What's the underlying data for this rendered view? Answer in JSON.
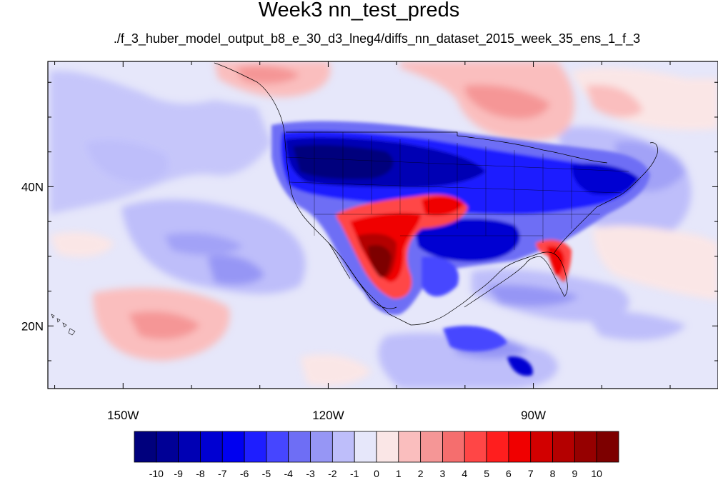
{
  "title": "Week3 nn_test_preds",
  "subtitle": "./f_3_huber_model_output_b8_e_30_d3_lneg4/diffs_nn_dataset_2015_week_35_ens_1_f_3",
  "map": {
    "lon_range": [
      -161,
      -63
    ],
    "lat_range": [
      11,
      58
    ],
    "lon_ticks": [
      {
        "value": -150,
        "label": "150W"
      },
      {
        "value": -120,
        "label": "120W"
      },
      {
        "value": -90,
        "label": "90W"
      }
    ],
    "lat_ticks": [
      {
        "value": 40,
        "label": "40N"
      },
      {
        "value": 20,
        "label": "20N"
      }
    ],
    "background_color": "#e6e7fa"
  },
  "colorbar": {
    "labels": [
      "-10",
      "-9",
      "-8",
      "-7",
      "-6",
      "-5",
      "-4",
      "-3",
      "-2",
      "-1",
      "0",
      "1",
      "2",
      "3",
      "4",
      "5",
      "6",
      "7",
      "8",
      "9",
      "10"
    ],
    "colors": [
      "#00007d",
      "#000096",
      "#0000b4",
      "#0000d2",
      "#0000f0",
      "#1e1eff",
      "#4646ff",
      "#6e6ef5",
      "#9696f5",
      "#bebefa",
      "#e6e7fa",
      "#fae6e6",
      "#fabebe",
      "#f59696",
      "#f56e6e",
      "#ff4646",
      "#ff1e1e",
      "#f00000",
      "#d20000",
      "#b40000",
      "#960000",
      "#7d0000"
    ]
  }
}
